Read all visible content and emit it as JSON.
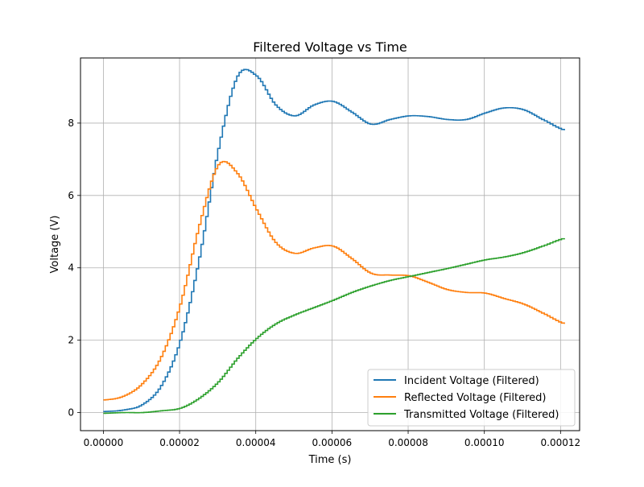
{
  "chart_data": {
    "type": "line",
    "title": "Filtered Voltage vs Time",
    "xlabel": "Time (s)",
    "ylabel": "Voltage (V)",
    "xlim": [
      -6e-06,
      0.000125
    ],
    "ylim": [
      -0.5,
      9.8
    ],
    "grid": true,
    "legend_position": "lower-right",
    "x_ticks": [
      0,
      2e-05,
      4e-05,
      6e-05,
      8e-05,
      0.0001,
      0.00012
    ],
    "x_tick_labels": [
      "0.00000",
      "0.00002",
      "0.00004",
      "0.00006",
      "0.00008",
      "0.00010",
      "0.00012"
    ],
    "y_ticks": [
      0,
      2,
      4,
      6,
      8
    ],
    "y_tick_labels": [
      "0",
      "2",
      "4",
      "6",
      "8"
    ],
    "step": true,
    "x": [
      0,
      5e-06,
      1e-05,
      1.5e-05,
      2e-05,
      2.5e-05,
      3e-05,
      3.5e-05,
      4e-05,
      4.5e-05,
      5e-05,
      5.5e-05,
      6e-05,
      6.5e-05,
      7e-05,
      7.5e-05,
      8e-05,
      8.5e-05,
      9e-05,
      9.5e-05,
      0.0001,
      0.000105,
      0.00011,
      0.000115,
      0.000121
    ],
    "series": [
      {
        "name": "Incident Voltage (Filtered)",
        "color": "#1f77b4",
        "values": [
          0.03,
          0.07,
          0.22,
          0.75,
          2.0,
          4.3,
          7.3,
          9.3,
          9.3,
          8.5,
          8.2,
          8.5,
          8.6,
          8.3,
          7.97,
          8.1,
          8.2,
          8.18,
          8.1,
          8.1,
          8.28,
          8.42,
          8.37,
          8.1,
          7.8
        ]
      },
      {
        "name": "Reflected Voltage (Filtered)",
        "color": "#ff7f0e",
        "values": [
          0.35,
          0.45,
          0.8,
          1.55,
          3.0,
          5.2,
          6.85,
          6.6,
          5.6,
          4.7,
          4.4,
          4.55,
          4.6,
          4.25,
          3.85,
          3.8,
          3.78,
          3.6,
          3.4,
          3.32,
          3.3,
          3.15,
          3.0,
          2.75,
          2.45
        ]
      },
      {
        "name": "Transmitted Voltage (Filtered)",
        "color": "#2ca02c",
        "values": [
          -0.02,
          0.0,
          0.0,
          0.05,
          0.12,
          0.4,
          0.85,
          1.5,
          2.05,
          2.45,
          2.7,
          2.9,
          3.1,
          3.32,
          3.5,
          3.65,
          3.76,
          3.87,
          3.98,
          4.1,
          4.22,
          4.3,
          4.42,
          4.6,
          4.82
        ]
      }
    ]
  }
}
